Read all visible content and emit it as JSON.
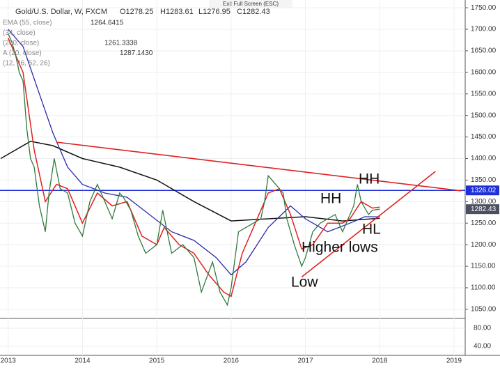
{
  "chart_data": {
    "type": "line",
    "header": {
      "symbol": "Gold/U.S. Dollar, W, FXCM",
      "ohlc": [
        "O1278.25",
        "H1283.61",
        "L1276.95",
        "C1282.43"
      ]
    },
    "indicators": [
      {
        "label": "EMA (55, close)",
        "value": "1264.6415"
      },
      {
        "label": "(34, close)",
        "value": null
      },
      {
        "label": "(200, close)",
        "value": "1261.3338"
      },
      {
        "label": "A (20, close)",
        "value": "1287.1430"
      },
      {
        "label": "(12, 26, 52, 26)",
        "value": null
      }
    ],
    "exit_text": "Exit Full Screen (ESC)",
    "xlim": [
      2012.89,
      2019.15
    ],
    "xticks": [
      2013,
      2014,
      2015,
      2016,
      2017,
      2018,
      2019
    ],
    "ylim": [
      1032,
      1768
    ],
    "yticks": [
      {
        "value": 1050,
        "label": "1050.00"
      },
      {
        "value": 1100,
        "label": "1100.00"
      },
      {
        "value": 1150,
        "label": "1150.00"
      },
      {
        "value": 1200,
        "label": "1200.00"
      },
      {
        "value": 1250,
        "label": "1250.00"
      },
      {
        "value": 1300,
        "label": "1300.00"
      },
      {
        "value": 1350,
        "label": "1350.00"
      },
      {
        "value": 1400,
        "label": "1400.00"
      },
      {
        "value": 1450,
        "label": "1450.00"
      },
      {
        "value": 1500,
        "label": "1500.00"
      },
      {
        "value": 1550,
        "label": "1550.00"
      },
      {
        "value": 1600,
        "label": "1600.00"
      },
      {
        "value": 1650,
        "label": "1650.00"
      },
      {
        "value": 1700,
        "label": "1700.00"
      },
      {
        "value": 1750,
        "label": "1750.00"
      }
    ],
    "lower_ylim": [
      20,
      100
    ],
    "lower_yticks": [
      {
        "value": 80,
        "label": "80.00"
      },
      {
        "value": 40,
        "label": "40.00"
      }
    ],
    "series": [
      {
        "color": "#2f7a3a",
        "width": 1.3,
        "x": [
          2013.0,
          2013.05,
          2013.1,
          2013.15,
          2013.2,
          2013.25,
          2013.3,
          2013.35,
          2013.42,
          2013.5,
          2013.55,
          2013.62,
          2013.7,
          2013.8,
          2013.9,
          2014.0,
          2014.1,
          2014.2,
          2014.3,
          2014.4,
          2014.5,
          2014.55,
          2014.65,
          2014.75,
          2014.85,
          2015.0,
          2015.08,
          2015.2,
          2015.35,
          2015.5,
          2015.6,
          2015.75,
          2015.85,
          2015.95,
          2016.0,
          2016.1,
          2016.2,
          2016.3,
          2016.4,
          2016.45,
          2016.5,
          2016.6,
          2016.7,
          2016.75,
          2016.85,
          2016.95,
          2017.0,
          2017.1,
          2017.2,
          2017.3,
          2017.4,
          2017.5,
          2017.55,
          2017.65,
          2017.7,
          2017.75,
          2017.85,
          2017.9,
          2018.0
        ],
        "values": [
          1690,
          1670,
          1640,
          1600,
          1580,
          1470,
          1400,
          1380,
          1290,
          1230,
          1320,
          1400,
          1330,
          1320,
          1250,
          1220,
          1300,
          1340,
          1300,
          1260,
          1320,
          1310,
          1280,
          1220,
          1180,
          1200,
          1280,
          1180,
          1200,
          1170,
          1090,
          1160,
          1090,
          1060,
          1100,
          1230,
          1240,
          1250,
          1260,
          1300,
          1360,
          1340,
          1320,
          1260,
          1200,
          1150,
          1170,
          1230,
          1250,
          1260,
          1270,
          1230,
          1250,
          1290,
          1340,
          1300,
          1270,
          1280,
          1282.43
        ]
      },
      {
        "color": "#e02020",
        "width": 1.5,
        "x": [
          2013.0,
          2013.2,
          2013.35,
          2013.5,
          2013.65,
          2013.8,
          2014.0,
          2014.2,
          2014.4,
          2014.6,
          2014.8,
          2015.0,
          2015.1,
          2015.3,
          2015.5,
          2015.7,
          2015.9,
          2016.0,
          2016.15,
          2016.3,
          2016.5,
          2016.65,
          2016.8,
          2016.95,
          2017.1,
          2017.3,
          2017.5,
          2017.6,
          2017.75,
          2017.9,
          2018.0
        ],
        "values": [
          1680,
          1600,
          1420,
          1300,
          1340,
          1330,
          1250,
          1320,
          1290,
          1300,
          1220,
          1200,
          1240,
          1200,
          1180,
          1130,
          1090,
          1080,
          1180,
          1240,
          1320,
          1330,
          1270,
          1190,
          1200,
          1250,
          1250,
          1260,
          1300,
          1285,
          1287.14
        ]
      },
      {
        "color": "#2a2aa8",
        "width": 1.3,
        "x": [
          2013.0,
          2013.2,
          2013.4,
          2013.6,
          2013.8,
          2014.0,
          2014.3,
          2014.6,
          2014.9,
          2015.2,
          2015.5,
          2015.8,
          2016.0,
          2016.2,
          2016.5,
          2016.8,
          2017.0,
          2017.3,
          2017.6,
          2017.8,
          2018.0
        ],
        "values": [
          1700,
          1660,
          1560,
          1460,
          1380,
          1340,
          1320,
          1310,
          1270,
          1230,
          1210,
          1170,
          1130,
          1160,
          1240,
          1290,
          1260,
          1230,
          1250,
          1265,
          1264.64
        ]
      },
      {
        "color": "#111111",
        "width": 1.5,
        "x": [
          2012.9,
          2013.3,
          2013.6,
          2014.0,
          2014.5,
          2015.0,
          2015.5,
          2016.0,
          2016.5,
          2017.0,
          2017.5,
          2018.0
        ],
        "values": [
          1400,
          1440,
          1430,
          1400,
          1380,
          1350,
          1300,
          1255,
          1260,
          1265,
          1255,
          1261.33
        ]
      }
    ],
    "trendlines": [
      {
        "color": "#e02020",
        "x": [
          2013.65,
          2019.1
        ],
        "values": [
          1438,
          1325
        ]
      },
      {
        "color": "#e02020",
        "x": [
          2016.95,
          2018.75
        ],
        "values": [
          1125,
          1370
        ]
      }
    ],
    "hline": {
      "value": 1326.02,
      "color": "#1f2fd8"
    },
    "last_price": 1282.43,
    "annotations": [
      "HH",
      "HH",
      "HL",
      "Higher lows",
      "Low"
    ]
  }
}
